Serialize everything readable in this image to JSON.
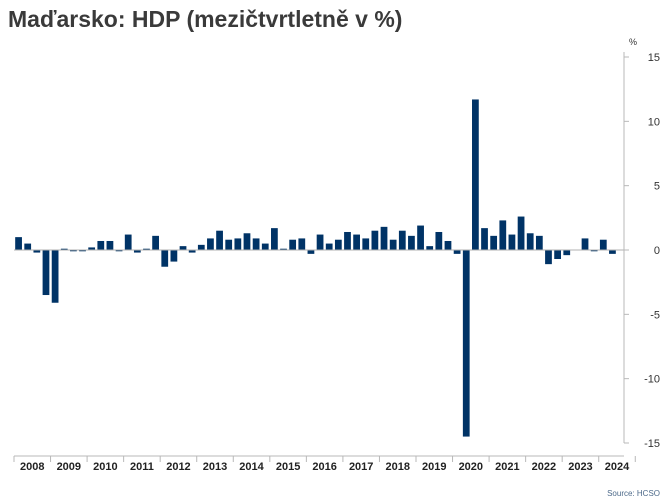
{
  "title": "Maďarsko: HDP (mezičtvrtletně v %)",
  "source": "Source: HCSO",
  "chart_data": {
    "type": "bar",
    "title": "Maďarsko: HDP (mezičtvrtletně v %)",
    "ylabel": "%",
    "xlabel": "",
    "ylim": [
      -15,
      15
    ],
    "yticks": [
      15,
      10,
      5,
      0,
      -5,
      -10,
      -15
    ],
    "grid": false,
    "years": [
      "2008",
      "2009",
      "2010",
      "2011",
      "2012",
      "2013",
      "2014",
      "2015",
      "2016",
      "2017",
      "2018",
      "2019",
      "2020",
      "2021",
      "2022",
      "2023",
      "2024"
    ],
    "color": "#003366",
    "values": [
      1.0,
      0.5,
      -0.2,
      -3.5,
      -4.1,
      0.1,
      -0.1,
      -0.1,
      0.2,
      0.7,
      0.7,
      -0.1,
      1.2,
      -0.2,
      0.1,
      1.1,
      -1.3,
      -0.9,
      0.3,
      -0.2,
      0.4,
      0.9,
      1.5,
      0.8,
      0.9,
      1.3,
      0.9,
      0.5,
      1.7,
      0.1,
      0.8,
      0.9,
      -0.3,
      1.2,
      0.5,
      0.8,
      1.4,
      1.2,
      0.9,
      1.5,
      1.8,
      0.8,
      1.5,
      1.1,
      1.9,
      0.3,
      1.4,
      0.7,
      -0.3,
      -14.5,
      11.7,
      1.7,
      1.1,
      2.3,
      1.2,
      2.6,
      1.3,
      1.1,
      -1.1,
      -0.7,
      -0.4,
      0.0,
      0.9,
      -0.1,
      0.8,
      -0.3
    ]
  }
}
